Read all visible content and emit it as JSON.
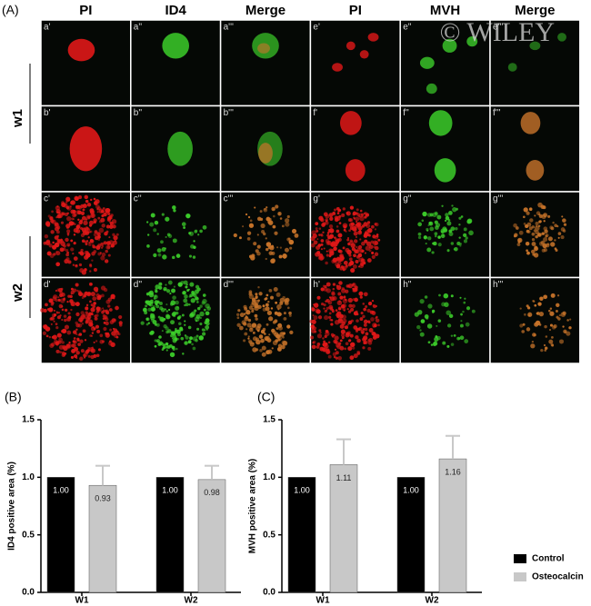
{
  "figure": {
    "panel_label": "(A)",
    "column_headers": [
      "PI",
      "ID4",
      "Merge",
      "PI",
      "MVH",
      "Merge"
    ],
    "row_labels": [
      "w1",
      "w2"
    ],
    "image_labels": [
      [
        "a'",
        "a''",
        "a'''",
        "e'",
        "e''",
        "e'''"
      ],
      [
        "b'",
        "b''",
        "b'''",
        "f'",
        "f''",
        "f'''"
      ],
      [
        "c'",
        "c''",
        "c'''",
        "g'",
        "g''",
        "g'''"
      ],
      [
        "d'",
        "d''",
        "d'''",
        "h'",
        "h''",
        "h'''"
      ]
    ],
    "watermark": "© WILEY"
  },
  "chart_data": [
    {
      "type": "bar",
      "panel_label": "(B)",
      "ylabel": "ID4 positive area (%)",
      "categories": [
        "W1",
        "W2"
      ],
      "series": [
        {
          "color": "#000000",
          "values": [
            1.0,
            1.0
          ],
          "value_labels": [
            "1.00",
            "1.00"
          ]
        },
        {
          "color": "#c8c8c8",
          "values": [
            0.93,
            0.98
          ],
          "value_labels": [
            "0.93",
            "0.98"
          ],
          "errors": [
            0.17,
            0.12
          ]
        }
      ],
      "ylim": [
        0,
        1.5
      ],
      "yticks": [
        {
          "value": 0,
          "label": "0.0"
        },
        {
          "value": 0.5,
          "label": "0.5"
        },
        {
          "value": 1,
          "label": "1.0"
        },
        {
          "value": 1.5,
          "label": "1.5"
        }
      ]
    },
    {
      "type": "bar",
      "panel_label": "(C)",
      "ylabel": "MVH positive area (%)",
      "categories": [
        "W1",
        "W2"
      ],
      "series": [
        {
          "name": "Control",
          "color": "#000000",
          "values": [
            1.0,
            1.0
          ],
          "value_labels": [
            "1.00",
            "1.00"
          ]
        },
        {
          "name": "Osteocalcin",
          "color": "#c8c8c8",
          "values": [
            1.11,
            1.16
          ],
          "value_labels": [
            "1.11",
            "1.16"
          ],
          "errors": [
            0.22,
            0.2
          ]
        }
      ],
      "ylim": [
        0,
        1.5
      ],
      "yticks": [
        {
          "value": 0,
          "label": "0.0"
        },
        {
          "value": 0.5,
          "label": "0.5"
        },
        {
          "value": 1,
          "label": "1.0"
        },
        {
          "value": 1.5,
          "label": "1.5"
        }
      ],
      "legend": "lower-right"
    }
  ]
}
